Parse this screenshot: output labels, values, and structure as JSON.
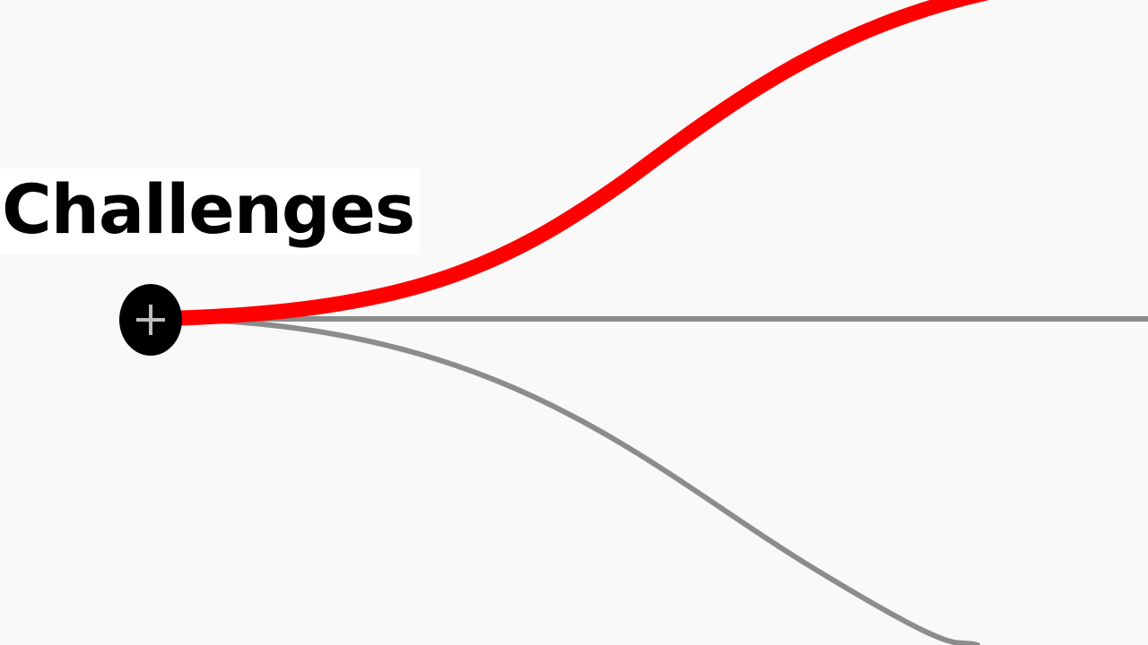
{
  "node": {
    "label": "Challenges",
    "toggle_icon": "plus-circle-icon",
    "toggle_symbol": "+"
  },
  "branches": [
    {
      "name": "branch-up",
      "color": "#ff0000",
      "highlighted": true
    },
    {
      "name": "branch-straight",
      "color": "#8c8c8c",
      "highlighted": false
    },
    {
      "name": "branch-down",
      "color": "#8c8c8c",
      "highlighted": false
    }
  ],
  "colors": {
    "background": "#f9f9f9",
    "node_fill": "#000000",
    "highlight": "#ff0000",
    "link": "#8c8c8c"
  }
}
